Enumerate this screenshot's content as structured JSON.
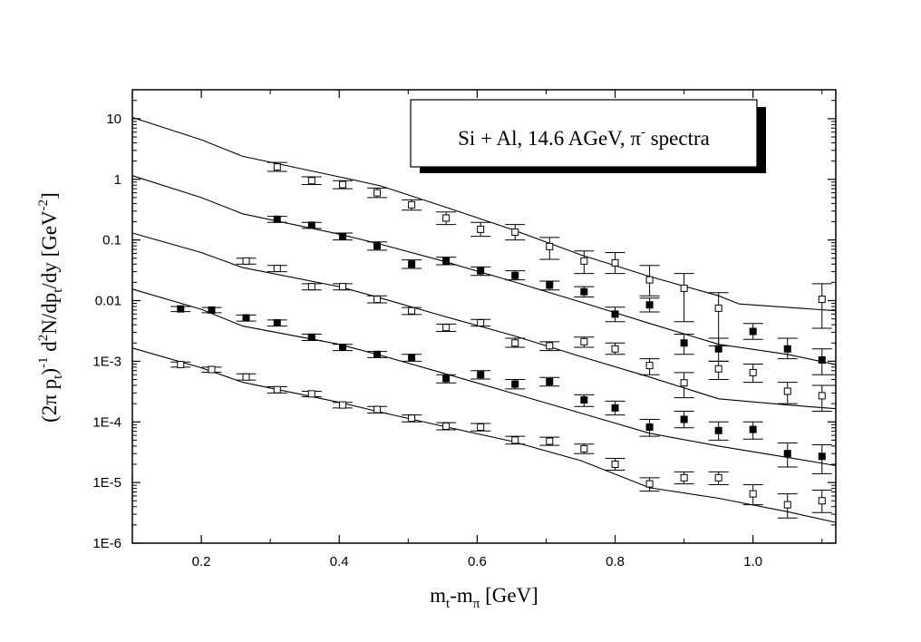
{
  "chart_data": {
    "type": "scatter",
    "title": "",
    "annotation": {
      "main": "Si + Al, 14.6 AGeV, π",
      "sup": "-",
      "rest": " spectra"
    },
    "xlabel": {
      "main": "m",
      "sub1": "t",
      "mid": "-m",
      "sub2": "π",
      "rest": " [GeV]"
    },
    "ylabel": {
      "p1": "(2π p",
      "s1": "t",
      "p2": ")",
      "e1": "-1",
      "p3": "  d",
      "e2": "2",
      "p4": "N/dp",
      "s2": "t",
      "p5": "/dy [GeV",
      "e3": "-2",
      "p6": "]"
    },
    "xlim": [
      0.1,
      1.12
    ],
    "ylim": [
      1e-06,
      30
    ],
    "y_scale": "log",
    "grid": false,
    "x_ticks": [
      {
        "value": 0.2,
        "label": "0.2"
      },
      {
        "value": 0.4,
        "label": "0.4"
      },
      {
        "value": 0.6,
        "label": "0.6"
      },
      {
        "value": 0.8,
        "label": "0.8"
      },
      {
        "value": 1.0,
        "label": "1.0"
      }
    ],
    "y_ticks": [
      {
        "value": 10,
        "label": "10"
      },
      {
        "value": 1,
        "label": "1"
      },
      {
        "value": 0.1,
        "label": "0.1"
      },
      {
        "value": 0.01,
        "label": "0.01"
      },
      {
        "value": 0.001,
        "label": "1E-3"
      },
      {
        "value": 0.0001,
        "label": "1E-4"
      },
      {
        "value": 1e-05,
        "label": "1E-5"
      },
      {
        "value": 1e-06,
        "label": "1E-6"
      }
    ],
    "series": [
      {
        "marker": "open-square",
        "points": [
          {
            "x": 0.31,
            "y": 1.6,
            "lo": 1.35,
            "hi": 1.9
          },
          {
            "x": 0.36,
            "y": 0.95,
            "lo": 0.82,
            "hi": 1.1
          },
          {
            "x": 0.405,
            "y": 0.82,
            "lo": 0.7,
            "hi": 0.95
          },
          {
            "x": 0.455,
            "y": 0.6,
            "lo": 0.5,
            "hi": 0.72
          },
          {
            "x": 0.505,
            "y": 0.38,
            "lo": 0.31,
            "hi": 0.46
          },
          {
            "x": 0.555,
            "y": 0.23,
            "lo": 0.18,
            "hi": 0.29
          },
          {
            "x": 0.605,
            "y": 0.15,
            "lo": 0.115,
            "hi": 0.195
          },
          {
            "x": 0.655,
            "y": 0.135,
            "lo": 0.1,
            "hi": 0.18
          },
          {
            "x": 0.705,
            "y": 0.078,
            "lo": 0.048,
            "hi": 0.11
          },
          {
            "x": 0.755,
            "y": 0.045,
            "lo": 0.028,
            "hi": 0.066
          },
          {
            "x": 0.8,
            "y": 0.042,
            "lo": 0.028,
            "hi": 0.062
          },
          {
            "x": 0.85,
            "y": 0.022,
            "lo": 0.012,
            "hi": 0.038
          },
          {
            "x": 0.9,
            "y": 0.016,
            "lo": 0.0045,
            "hi": 0.028
          },
          {
            "x": 0.95,
            "y": 0.0075,
            "lo": 0.0018,
            "hi": 0.0135
          },
          {
            "x": 1.1,
            "y": 0.0105,
            "lo": 0.0035,
            "hi": 0.019
          }
        ],
        "curve": [
          {
            "x": 0.1,
            "y": 10.5
          },
          {
            "x": 0.2,
            "y": 4.5
          },
          {
            "x": 0.26,
            "y": 2.4
          },
          {
            "x": 0.4,
            "y": 1.1
          },
          {
            "x": 0.46,
            "y": 0.78
          },
          {
            "x": 0.55,
            "y": 0.36
          },
          {
            "x": 0.65,
            "y": 0.15
          },
          {
            "x": 0.75,
            "y": 0.057
          },
          {
            "x": 0.85,
            "y": 0.025
          },
          {
            "x": 0.95,
            "y": 0.012
          },
          {
            "x": 0.98,
            "y": 0.0088
          },
          {
            "x": 1.12,
            "y": 0.0068
          }
        ]
      },
      {
        "marker": "filled-square",
        "points": [
          {
            "x": 0.31,
            "y": 0.22,
            "lo": 0.195,
            "hi": 0.245
          },
          {
            "x": 0.36,
            "y": 0.175,
            "lo": 0.155,
            "hi": 0.195
          },
          {
            "x": 0.405,
            "y": 0.115,
            "lo": 0.1,
            "hi": 0.13
          },
          {
            "x": 0.455,
            "y": 0.08,
            "lo": 0.068,
            "hi": 0.093
          },
          {
            "x": 0.505,
            "y": 0.04,
            "lo": 0.034,
            "hi": 0.047
          },
          {
            "x": 0.555,
            "y": 0.045,
            "lo": 0.039,
            "hi": 0.052
          },
          {
            "x": 0.605,
            "y": 0.031,
            "lo": 0.026,
            "hi": 0.036
          },
          {
            "x": 0.655,
            "y": 0.026,
            "lo": 0.022,
            "hi": 0.031
          },
          {
            "x": 0.705,
            "y": 0.018,
            "lo": 0.015,
            "hi": 0.021
          },
          {
            "x": 0.755,
            "y": 0.014,
            "lo": 0.0115,
            "hi": 0.017
          },
          {
            "x": 0.8,
            "y": 0.006,
            "lo": 0.0045,
            "hi": 0.0078
          },
          {
            "x": 0.85,
            "y": 0.0085,
            "lo": 0.0065,
            "hi": 0.011
          },
          {
            "x": 0.9,
            "y": 0.002,
            "lo": 0.0013,
            "hi": 0.0028
          },
          {
            "x": 0.95,
            "y": 0.0016,
            "lo": 0.001,
            "hi": 0.0024
          },
          {
            "x": 1.0,
            "y": 0.0031,
            "lo": 0.0023,
            "hi": 0.0042
          },
          {
            "x": 1.05,
            "y": 0.0016,
            "lo": 0.0011,
            "hi": 0.0024
          },
          {
            "x": 1.1,
            "y": 0.00105,
            "lo": 0.0006,
            "hi": 0.0016
          }
        ],
        "curve": [
          {
            "x": 0.1,
            "y": 1.15
          },
          {
            "x": 0.2,
            "y": 0.5
          },
          {
            "x": 0.26,
            "y": 0.27
          },
          {
            "x": 0.4,
            "y": 0.125
          },
          {
            "x": 0.46,
            "y": 0.085
          },
          {
            "x": 0.55,
            "y": 0.045
          },
          {
            "x": 0.65,
            "y": 0.021
          },
          {
            "x": 0.75,
            "y": 0.0095
          },
          {
            "x": 0.85,
            "y": 0.0042
          },
          {
            "x": 0.95,
            "y": 0.0019
          },
          {
            "x": 1.05,
            "y": 0.0013
          },
          {
            "x": 1.12,
            "y": 0.00088
          }
        ]
      },
      {
        "marker": "open-square",
        "points": [
          {
            "x": 0.265,
            "y": 0.045,
            "lo": 0.04,
            "hi": 0.05
          },
          {
            "x": 0.31,
            "y": 0.034,
            "lo": 0.03,
            "hi": 0.038
          },
          {
            "x": 0.36,
            "y": 0.017,
            "lo": 0.015,
            "hi": 0.019
          },
          {
            "x": 0.405,
            "y": 0.017,
            "lo": 0.015,
            "hi": 0.019
          },
          {
            "x": 0.455,
            "y": 0.0105,
            "lo": 0.0092,
            "hi": 0.012
          },
          {
            "x": 0.505,
            "y": 0.0068,
            "lo": 0.0059,
            "hi": 0.0077
          },
          {
            "x": 0.555,
            "y": 0.0036,
            "lo": 0.0031,
            "hi": 0.0041
          },
          {
            "x": 0.605,
            "y": 0.0043,
            "lo": 0.0038,
            "hi": 0.0049
          },
          {
            "x": 0.655,
            "y": 0.002,
            "lo": 0.0017,
            "hi": 0.0024
          },
          {
            "x": 0.705,
            "y": 0.0018,
            "lo": 0.0015,
            "hi": 0.0021
          },
          {
            "x": 0.755,
            "y": 0.0021,
            "lo": 0.0017,
            "hi": 0.0025
          },
          {
            "x": 0.8,
            "y": 0.0016,
            "lo": 0.0013,
            "hi": 0.002
          },
          {
            "x": 0.85,
            "y": 0.00085,
            "lo": 0.0006,
            "hi": 0.0011
          },
          {
            "x": 0.9,
            "y": 0.00044,
            "lo": 0.00025,
            "hi": 0.00065
          },
          {
            "x": 0.95,
            "y": 0.00075,
            "lo": 0.0005,
            "hi": 0.001
          },
          {
            "x": 1.0,
            "y": 0.00065,
            "lo": 0.00045,
            "hi": 0.0009
          },
          {
            "x": 1.05,
            "y": 0.00032,
            "lo": 0.0002,
            "hi": 0.00045
          },
          {
            "x": 1.1,
            "y": 0.00027,
            "lo": 0.00015,
            "hi": 0.0004
          }
        ],
        "curve": [
          {
            "x": 0.1,
            "y": 0.13
          },
          {
            "x": 0.2,
            "y": 0.062
          },
          {
            "x": 0.26,
            "y": 0.035
          },
          {
            "x": 0.4,
            "y": 0.017
          },
          {
            "x": 0.46,
            "y": 0.011
          },
          {
            "x": 0.55,
            "y": 0.0056
          },
          {
            "x": 0.65,
            "y": 0.0027
          },
          {
            "x": 0.75,
            "y": 0.0012
          },
          {
            "x": 0.85,
            "y": 0.00055
          },
          {
            "x": 0.95,
            "y": 0.00024
          },
          {
            "x": 1.05,
            "y": 0.00019
          },
          {
            "x": 1.12,
            "y": 0.000165
          }
        ]
      },
      {
        "marker": "filled-square",
        "points": [
          {
            "x": 0.17,
            "y": 0.0073,
            "lo": 0.0066,
            "hi": 0.008
          },
          {
            "x": 0.215,
            "y": 0.007,
            "lo": 0.0063,
            "hi": 0.0077
          },
          {
            "x": 0.265,
            "y": 0.0052,
            "lo": 0.0046,
            "hi": 0.0058
          },
          {
            "x": 0.31,
            "y": 0.0043,
            "lo": 0.0038,
            "hi": 0.0048
          },
          {
            "x": 0.36,
            "y": 0.0025,
            "lo": 0.0022,
            "hi": 0.0028
          },
          {
            "x": 0.405,
            "y": 0.0017,
            "lo": 0.0015,
            "hi": 0.0019
          },
          {
            "x": 0.455,
            "y": 0.0013,
            "lo": 0.00115,
            "hi": 0.00145
          },
          {
            "x": 0.505,
            "y": 0.00115,
            "lo": 0.001,
            "hi": 0.0013
          },
          {
            "x": 0.555,
            "y": 0.00052,
            "lo": 0.00044,
            "hi": 0.0006
          },
          {
            "x": 0.605,
            "y": 0.0006,
            "lo": 0.00051,
            "hi": 0.0007
          },
          {
            "x": 0.655,
            "y": 0.00042,
            "lo": 0.00035,
            "hi": 0.0005
          },
          {
            "x": 0.705,
            "y": 0.00046,
            "lo": 0.00039,
            "hi": 0.00054
          },
          {
            "x": 0.755,
            "y": 0.00023,
            "lo": 0.00018,
            "hi": 0.00028
          },
          {
            "x": 0.8,
            "y": 0.00017,
            "lo": 0.00013,
            "hi": 0.00022
          },
          {
            "x": 0.85,
            "y": 8.2e-05,
            "lo": 5.8e-05,
            "hi": 0.00011
          },
          {
            "x": 0.9,
            "y": 0.00011,
            "lo": 8e-05,
            "hi": 0.00015
          },
          {
            "x": 0.95,
            "y": 7.2e-05,
            "lo": 5e-05,
            "hi": 0.0001
          },
          {
            "x": 1.0,
            "y": 7.5e-05,
            "lo": 5.2e-05,
            "hi": 0.0001
          },
          {
            "x": 1.05,
            "y": 3e-05,
            "lo": 1.8e-05,
            "hi": 4.5e-05
          },
          {
            "x": 1.1,
            "y": 2.7e-05,
            "lo": 1.4e-05,
            "hi": 4.2e-05
          }
        ],
        "curve": [
          {
            "x": 0.1,
            "y": 0.0155
          },
          {
            "x": 0.2,
            "y": 0.0072
          },
          {
            "x": 0.26,
            "y": 0.0038
          },
          {
            "x": 0.4,
            "y": 0.0019
          },
          {
            "x": 0.46,
            "y": 0.00125
          },
          {
            "x": 0.55,
            "y": 0.00064
          },
          {
            "x": 0.65,
            "y": 0.0003
          },
          {
            "x": 0.75,
            "y": 0.00014
          },
          {
            "x": 0.85,
            "y": 6.5e-05
          },
          {
            "x": 0.95,
            "y": 4e-05
          },
          {
            "x": 1.05,
            "y": 2.6e-05
          },
          {
            "x": 1.12,
            "y": 1.9e-05
          }
        ]
      },
      {
        "marker": "open-square",
        "points": [
          {
            "x": 0.17,
            "y": 0.00088,
            "lo": 0.0008,
            "hi": 0.00097
          },
          {
            "x": 0.215,
            "y": 0.00073,
            "lo": 0.00066,
            "hi": 0.0008
          },
          {
            "x": 0.265,
            "y": 0.00055,
            "lo": 0.00049,
            "hi": 0.00062
          },
          {
            "x": 0.31,
            "y": 0.00034,
            "lo": 0.0003,
            "hi": 0.00038
          },
          {
            "x": 0.36,
            "y": 0.00029,
            "lo": 0.00026,
            "hi": 0.00032
          },
          {
            "x": 0.405,
            "y": 0.00019,
            "lo": 0.00017,
            "hi": 0.00021
          },
          {
            "x": 0.455,
            "y": 0.00016,
            "lo": 0.00014,
            "hi": 0.00018
          },
          {
            "x": 0.505,
            "y": 0.000115,
            "lo": 0.0001,
            "hi": 0.00013
          },
          {
            "x": 0.555,
            "y": 8.5e-05,
            "lo": 7.4e-05,
            "hi": 9.7e-05
          },
          {
            "x": 0.605,
            "y": 8.2e-05,
            "lo": 7.1e-05,
            "hi": 9.4e-05
          },
          {
            "x": 0.655,
            "y": 5e-05,
            "lo": 4.3e-05,
            "hi": 5.8e-05
          },
          {
            "x": 0.705,
            "y": 4.8e-05,
            "lo": 4.1e-05,
            "hi": 5.6e-05
          },
          {
            "x": 0.755,
            "y": 3.6e-05,
            "lo": 3e-05,
            "hi": 4.3e-05
          },
          {
            "x": 0.8,
            "y": 2e-05,
            "lo": 1.6e-05,
            "hi": 2.5e-05
          },
          {
            "x": 0.85,
            "y": 9.5e-06,
            "lo": 7.2e-06,
            "hi": 1.2e-05
          },
          {
            "x": 0.9,
            "y": 1.2e-05,
            "lo": 9.5e-06,
            "hi": 1.5e-05
          },
          {
            "x": 0.95,
            "y": 1.2e-05,
            "lo": 9.2e-06,
            "hi": 1.5e-05
          },
          {
            "x": 1.0,
            "y": 6.5e-06,
            "lo": 4.3e-06,
            "hi": 9.2e-06
          },
          {
            "x": 1.05,
            "y": 4.3e-06,
            "lo": 2.6e-06,
            "hi": 6.5e-06
          },
          {
            "x": 1.1,
            "y": 5e-06,
            "lo": 3.2e-06,
            "hi": 7.5e-06
          }
        ],
        "curve": [
          {
            "x": 0.1,
            "y": 0.00165
          },
          {
            "x": 0.2,
            "y": 0.00078
          },
          {
            "x": 0.26,
            "y": 0.00045
          },
          {
            "x": 0.4,
            "y": 0.00021
          },
          {
            "x": 0.46,
            "y": 0.000145
          },
          {
            "x": 0.55,
            "y": 8.5e-05
          },
          {
            "x": 0.65,
            "y": 4.8e-05
          },
          {
            "x": 0.75,
            "y": 2.3e-05
          },
          {
            "x": 0.85,
            "y": 8.2e-06
          },
          {
            "x": 0.95,
            "y": 5.5e-06
          },
          {
            "x": 1.05,
            "y": 3.3e-06
          },
          {
            "x": 1.12,
            "y": 2.2e-06
          }
        ]
      }
    ]
  }
}
